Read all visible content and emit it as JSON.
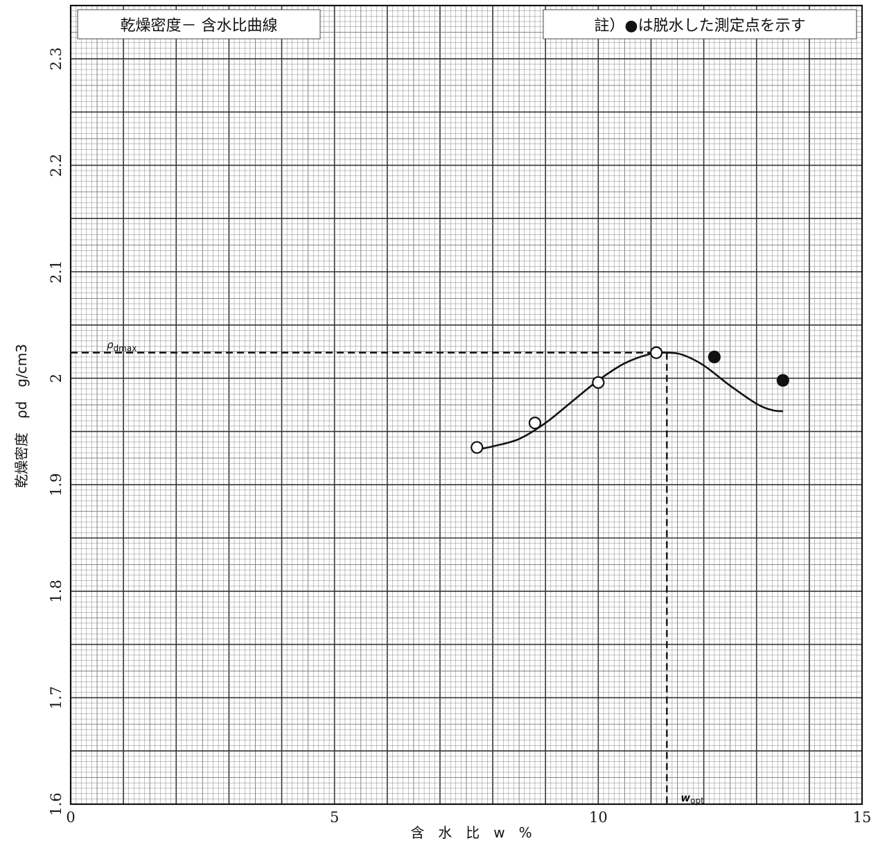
{
  "chart_data": {
    "type": "scatter",
    "title": "乾燥密度－ 含水比曲線",
    "note": "註）●は脱水した測定点を示す",
    "xlabel": "含　水　比　w　%",
    "ylabel": "乾燥密度　ρd　g/cm3",
    "xlim": [
      0,
      15
    ],
    "ylim": [
      1.6,
      2.35
    ],
    "x_ticks": [
      0,
      5,
      10,
      15
    ],
    "x_tick_labels": [
      "0",
      "5",
      "10",
      "15"
    ],
    "y_ticks": [
      1.6,
      1.7,
      1.8,
      1.9,
      2.0,
      2.1,
      2.2,
      2.3
    ],
    "y_tick_labels": [
      "1.6",
      "1.7",
      "1.8",
      "1.9",
      "2",
      "2.1",
      "2.2",
      "2.3"
    ],
    "grid": true,
    "series": [
      {
        "name": "",
        "marker": "open-circle",
        "x": [
          7.7,
          8.8,
          10.0,
          11.1
        ],
        "y": [
          1.935,
          1.958,
          1.996,
          2.024
        ]
      },
      {
        "name": "",
        "marker": "filled-circle",
        "x": [
          12.2,
          13.5
        ],
        "y": [
          2.02,
          1.998
        ]
      }
    ],
    "curve": {
      "x": [
        7.7,
        8.0,
        8.5,
        9.0,
        9.5,
        10.0,
        10.5,
        11.0,
        11.3,
        11.6,
        12.0,
        12.5,
        13.0,
        13.3,
        13.5
      ],
      "y": [
        1.933,
        1.936,
        1.943,
        1.958,
        1.978,
        1.998,
        2.014,
        2.023,
        2.024,
        2.022,
        2.012,
        1.993,
        1.976,
        1.97,
        1.969
      ]
    },
    "optimum": {
      "rho_dmax": 2.024,
      "w_opt": 11.3,
      "rho_label": "ρ",
      "rho_sub": "dmax",
      "w_label": "w",
      "w_sub": "opt"
    },
    "colors": {
      "grid": "#777777",
      "frame": "#111111",
      "ink": "#111111"
    }
  }
}
